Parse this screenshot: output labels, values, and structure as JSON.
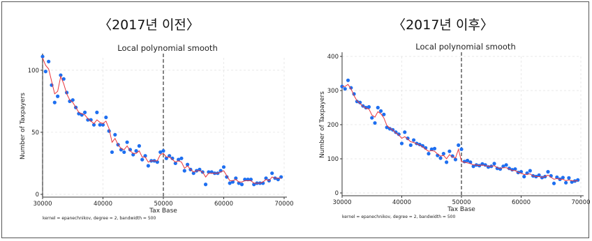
{
  "panels": [
    {
      "label": "〈2017년 이전〉"
    },
    {
      "label": "〈2017년 이후〉"
    }
  ],
  "colors": {
    "dots": "#1e6ff0",
    "line": "#e8343a",
    "cutoff": "#444444",
    "grid": "#e4e4e4"
  },
  "chart_data": [
    {
      "type": "scatter",
      "title": "Local polynomial smooth",
      "xlabel": "Tax Base",
      "ylabel": "Number of Taxpayers",
      "note": "kernel = epanechnikov, degree = 2, bandwidth = 500",
      "xlim": [
        30000,
        70000
      ],
      "ylim": [
        0,
        110
      ],
      "xticks": [
        30000,
        40000,
        50000,
        60000,
        70000
      ],
      "yticks": [
        0,
        50,
        100
      ],
      "cutoffs": [
        30000,
        50000
      ],
      "series": [
        {
          "type": "scatter",
          "x": [
            30000,
            30500,
            31000,
            31500,
            32000,
            32500,
            33000,
            33500,
            34000,
            34500,
            35000,
            35500,
            36000,
            36500,
            37000,
            37500,
            38000,
            38500,
            39000,
            39500,
            40000,
            40500,
            41000,
            41500,
            42000,
            42500,
            43000,
            43500,
            44000,
            44500,
            45000,
            45500,
            46000,
            46500,
            47000,
            47500,
            48000,
            48500,
            49000,
            49500,
            50000,
            50500,
            51000,
            51500,
            52000,
            52500,
            53000,
            53500,
            54000,
            54500,
            55000,
            55500,
            56000,
            56500,
            57000,
            57500,
            58000,
            58500,
            59000,
            59500,
            60000,
            60500,
            61000,
            61500,
            62000,
            62500,
            63000,
            63500,
            64000,
            64500,
            65000,
            65500,
            66000,
            66500,
            67000,
            67500,
            68000,
            68500,
            69000,
            69500
          ],
          "y": [
            111,
            99,
            107,
            88,
            74,
            79,
            96,
            93,
            82,
            75,
            76,
            70,
            65,
            64,
            66,
            60,
            60,
            56,
            66,
            56,
            56,
            62,
            51,
            34,
            48,
            40,
            36,
            34,
            42,
            36,
            32,
            35,
            39,
            28,
            31,
            23,
            27,
            27,
            26,
            34,
            35,
            29,
            31,
            29,
            25,
            28,
            29,
            19,
            24,
            20,
            17,
            19,
            20,
            18,
            8,
            18,
            18,
            17,
            17,
            19,
            22,
            14,
            9,
            10,
            13,
            9,
            8,
            12,
            12,
            12,
            8,
            9,
            9,
            9,
            13,
            11,
            17,
            13,
            12,
            14
          ]
        },
        {
          "type": "line",
          "x": [
            30000,
            30500,
            31000,
            31500,
            32000,
            32500,
            33000,
            33500,
            34000,
            34500,
            35000,
            35500,
            36000,
            36500,
            37000,
            37500,
            38000,
            38500,
            39000,
            39500,
            40000,
            40500,
            41000,
            41500,
            42000,
            42500,
            43000,
            43500,
            44000,
            44500,
            45000,
            45500,
            46000,
            46500,
            47000,
            47500,
            48000,
            48500,
            49000,
            49500,
            50000,
            50500,
            51000,
            51500,
            52000,
            52500,
            53000,
            53500,
            54000,
            54500,
            55000,
            55500,
            56000,
            56500,
            57000,
            57500,
            58000,
            58500,
            59000,
            59500,
            60000,
            60500,
            61000,
            61500,
            62000,
            62500,
            63000,
            63500,
            64000,
            64500,
            65000,
            65500,
            66000,
            66500,
            67000,
            67500,
            68000,
            68500,
            69000,
            69500
          ],
          "y": [
            110,
            104,
            101,
            91,
            81,
            83,
            95,
            89,
            81,
            76,
            74,
            70,
            66,
            65,
            64,
            61,
            59,
            57,
            60,
            58,
            57,
            59,
            53,
            42,
            45,
            40,
            37,
            36,
            39,
            35,
            33,
            33,
            35,
            30,
            30,
            26,
            27,
            27,
            27,
            32,
            33,
            30,
            30,
            28,
            26,
            27,
            26,
            21,
            23,
            20,
            18,
            19,
            19,
            18,
            14,
            17,
            17,
            17,
            17,
            18,
            19,
            15,
            11,
            11,
            12,
            10,
            10,
            11,
            11,
            11,
            9,
            9,
            9,
            10,
            12,
            11,
            14,
            13,
            13,
            13
          ]
        }
      ]
    },
    {
      "type": "scatter",
      "title": "Local polynomial smooth",
      "xlabel": "Tax Base",
      "ylabel": "Number of Taxpayers",
      "note": "kernel = epanechnikov, degree = 2, bandwidth = 500",
      "xlim": [
        30000,
        70000
      ],
      "ylim": [
        0,
        400
      ],
      "xticks": [
        30000,
        40000,
        50000,
        60000,
        70000
      ],
      "yticks": [
        0,
        100,
        200,
        300,
        400
      ],
      "cutoffs": [
        50000
      ],
      "series": [
        {
          "type": "scatter",
          "x": [
            30000,
            30500,
            31000,
            31500,
            32000,
            32500,
            33000,
            33500,
            34000,
            34500,
            35000,
            35500,
            36000,
            36500,
            37000,
            37500,
            38000,
            38500,
            39000,
            39500,
            40000,
            40500,
            41000,
            41500,
            42000,
            42500,
            43000,
            43500,
            44000,
            44500,
            45000,
            45500,
            46000,
            46500,
            47000,
            47500,
            48000,
            48500,
            49000,
            49500,
            50000,
            50500,
            51000,
            51500,
            52000,
            52500,
            53000,
            53500,
            54000,
            54500,
            55000,
            55500,
            56000,
            56500,
            57000,
            57500,
            58000,
            58500,
            59000,
            59500,
            60000,
            60500,
            61000,
            61500,
            62000,
            62500,
            63000,
            63500,
            64000,
            64500,
            65000,
            65500,
            66000,
            66500,
            67000,
            67500,
            68000,
            68500,
            69000,
            69500
          ],
          "y": [
            312,
            305,
            330,
            308,
            290,
            268,
            265,
            255,
            250,
            252,
            220,
            205,
            250,
            240,
            230,
            192,
            188,
            185,
            178,
            172,
            145,
            178,
            160,
            140,
            155,
            145,
            142,
            138,
            132,
            115,
            128,
            130,
            110,
            102,
            115,
            90,
            122,
            108,
            98,
            140,
            128,
            92,
            95,
            90,
            78,
            82,
            80,
            85,
            82,
            76,
            78,
            86,
            72,
            70,
            78,
            82,
            72,
            68,
            70,
            60,
            62,
            48,
            58,
            65,
            50,
            48,
            52,
            45,
            48,
            62,
            50,
            28,
            46,
            40,
            45,
            30,
            44,
            32,
            35,
            38
          ]
        },
        {
          "type": "line",
          "x": [
            30000,
            30500,
            31000,
            31500,
            32000,
            32500,
            33000,
            33500,
            34000,
            34500,
            35000,
            35500,
            36000,
            36500,
            37000,
            37500,
            38000,
            38500,
            39000,
            39500,
            40000,
            40500,
            41000,
            41500,
            42000,
            42500,
            43000,
            43500,
            44000,
            44500,
            45000,
            45500,
            46000,
            46500,
            47000,
            47500,
            48000,
            48500,
            49000,
            49500,
            50000,
            50500,
            51000,
            51500,
            52000,
            52500,
            53000,
            53500,
            54000,
            54500,
            55000,
            55500,
            56000,
            56500,
            57000,
            57500,
            58000,
            58500,
            59000,
            59500,
            60000,
            60500,
            61000,
            61500,
            62000,
            62500,
            63000,
            63500,
            64000,
            64500,
            65000,
            65500,
            66000,
            66500,
            67000,
            67500,
            68000,
            68500,
            69000,
            69500
          ],
          "y": [
            312,
            312,
            318,
            305,
            285,
            270,
            262,
            254,
            248,
            246,
            228,
            222,
            238,
            232,
            220,
            198,
            190,
            184,
            176,
            170,
            160,
            165,
            158,
            150,
            148,
            144,
            140,
            135,
            128,
            122,
            124,
            122,
            114,
            108,
            110,
            100,
            112,
            106,
            102,
            128,
            92,
            90,
            88,
            86,
            82,
            82,
            80,
            82,
            80,
            78,
            78,
            80,
            74,
            72,
            74,
            74,
            70,
            66,
            66,
            60,
            58,
            54,
            55,
            56,
            50,
            48,
            48,
            46,
            48,
            52,
            46,
            40,
            42,
            40,
            40,
            36,
            38,
            36,
            35,
            36
          ]
        }
      ]
    }
  ]
}
